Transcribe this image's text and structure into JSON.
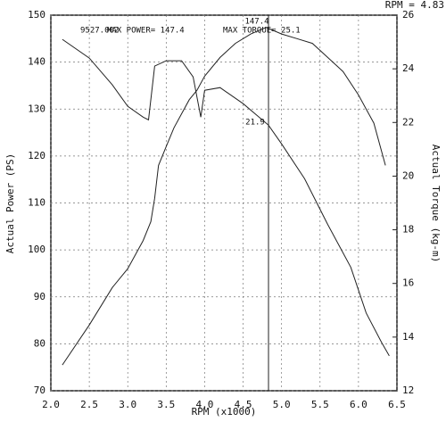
{
  "chart_data": {
    "type": "line",
    "xlabel": "RPM (x1000)",
    "ylabel": "Actual Power (PS)",
    "y2label": "Actual Torque (kg-m)",
    "xlim": [
      2.0,
      6.5
    ],
    "xticks": [
      {
        "value": 2,
        "label": "2.0"
      },
      2.5,
      {
        "value": 3,
        "label": "3.0"
      },
      3.5,
      {
        "value": 4,
        "label": "4.0"
      },
      4.5,
      {
        "value": 5,
        "label": "5.0"
      },
      5.5,
      {
        "value": 6,
        "label": "6.0"
      },
      6.5
    ],
    "ylim": [
      70,
      150
    ],
    "yticks": [
      70,
      80,
      90,
      100,
      110,
      120,
      130,
      140,
      150
    ],
    "y2lim": [
      12,
      26
    ],
    "y2ticks": [
      12,
      14,
      16,
      18,
      20,
      22,
      24,
      26
    ],
    "grid": true,
    "cursor": 4.83,
    "annotations": [
      "RPM = 4.83",
      "9527.002",
      "MAX POWER= 147.4",
      "MAX TORQUE= 25.1",
      "147.4",
      "21.9"
    ],
    "series": [
      {
        "name": "Actual Power",
        "color": "#222",
        "x": [
          2.15,
          2.5,
          2.8,
          3.0,
          3.2,
          3.3,
          3.35,
          3.4,
          3.5,
          3.6,
          3.7,
          3.8,
          3.9,
          4.0,
          4.2,
          4.4,
          4.6,
          4.8,
          5.0,
          5.2,
          5.4,
          5.6,
          5.8,
          6.0,
          6.2,
          6.35
        ],
        "values": [
          75.5,
          84,
          92,
          96,
          102,
          106,
          111,
          118,
          122,
          126,
          129,
          132,
          134,
          137,
          141,
          144,
          146,
          147.4,
          146,
          145,
          144,
          141,
          138,
          133,
          127,
          118
        ]
      },
      {
        "name": "Actual Torque",
        "color": "#222",
        "axis": "y2",
        "x": [
          2.15,
          2.5,
          2.8,
          3.0,
          3.2,
          3.27,
          3.35,
          3.5,
          3.7,
          3.85,
          3.95,
          4.0,
          4.2,
          4.5,
          4.83,
          5.0,
          5.3,
          5.6,
          5.9,
          6.1,
          6.3,
          6.4
        ],
        "values": [
          25.1,
          24.4,
          23.4,
          22.6,
          22.2,
          22.1,
          24.1,
          24.3,
          24.3,
          23.7,
          22.2,
          23.2,
          23.3,
          22.7,
          21.9,
          21.2,
          19.9,
          18.2,
          16.6,
          14.9,
          13.8,
          13.3
        ]
      }
    ]
  }
}
